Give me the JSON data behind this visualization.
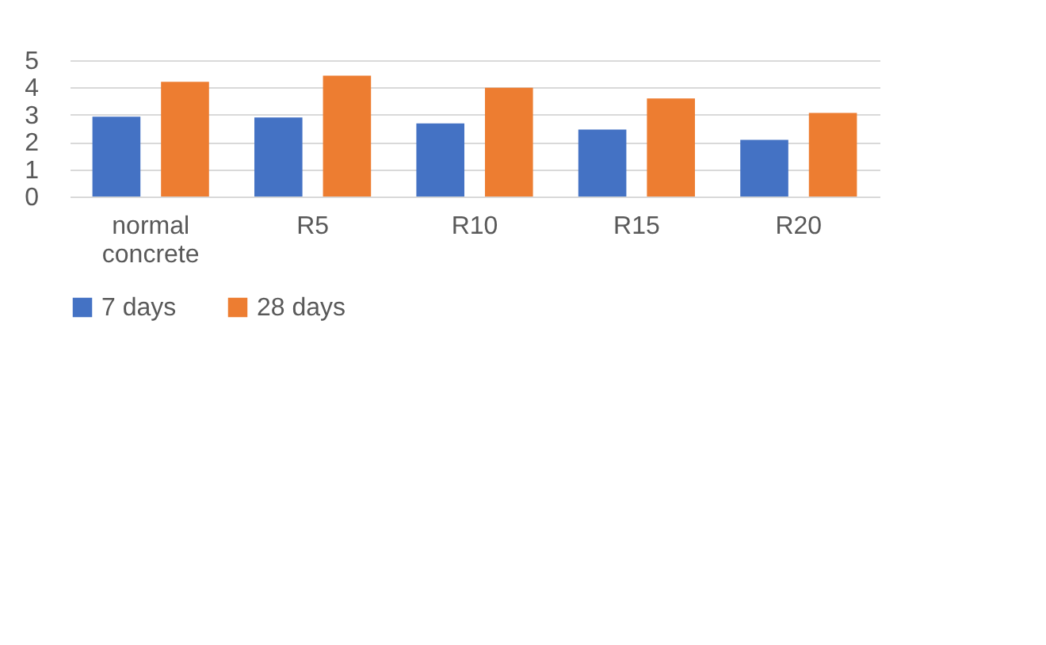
{
  "chart_data": {
    "type": "bar",
    "categories": [
      "normal concrete",
      "R5",
      "R10",
      "R15",
      "R20"
    ],
    "series": [
      {
        "name": "7 days",
        "color": "#4472c4",
        "values": [
          2.93,
          2.9,
          2.68,
          2.46,
          2.08
        ]
      },
      {
        "name": "28 days",
        "color": "#ed7d31",
        "values": [
          4.21,
          4.43,
          3.99,
          3.6,
          3.07
        ]
      }
    ],
    "ylim": [
      0,
      5
    ],
    "yticks": [
      0,
      1,
      2,
      3,
      4,
      5
    ],
    "grid": "y",
    "legend": "bottom"
  }
}
